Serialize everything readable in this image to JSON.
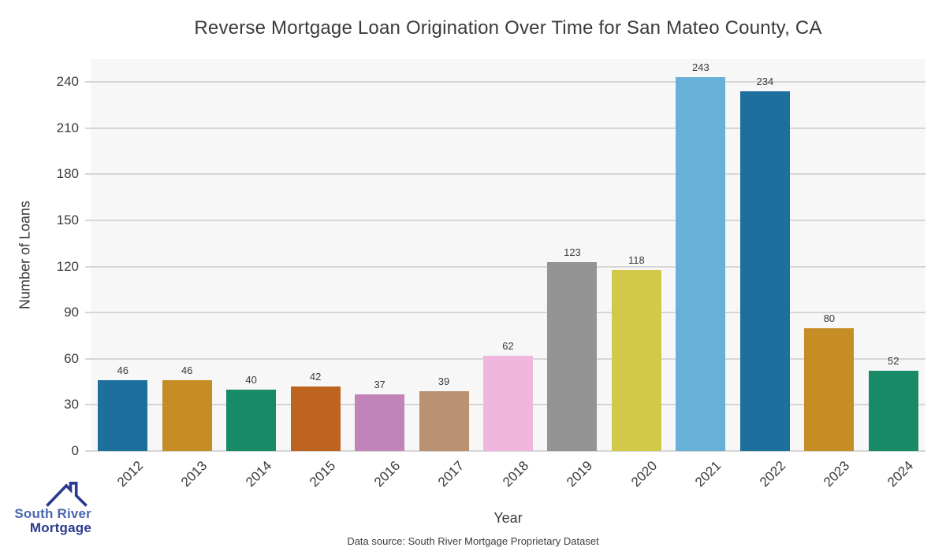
{
  "page": {
    "footer_note": "Data source: South River Mortgage Proprietary Dataset"
  },
  "logo": {
    "line1": "South River",
    "line2": "Mortgage",
    "line1_color": "#4a66b2",
    "line2_color": "#2b3a8f",
    "icon": "house-roof-icon",
    "icon_color": "#2b3a8f"
  },
  "chart_data": {
    "type": "bar",
    "title": "Reverse Mortgage Loan Origination Over Time for San Mateo County, CA",
    "xlabel": "Year",
    "ylabel": "Number of Loans",
    "categories": [
      "2012",
      "2013",
      "2014",
      "2015",
      "2016",
      "2017",
      "2018",
      "2019",
      "2020",
      "2021",
      "2022",
      "2023",
      "2024"
    ],
    "values": [
      46,
      46,
      40,
      42,
      37,
      39,
      62,
      123,
      118,
      243,
      234,
      80,
      52
    ],
    "bar_colors": [
      "#1d6f9e",
      "#c68d24",
      "#198a67",
      "#bd6420",
      "#c284b8",
      "#bb9271",
      "#f0b6de",
      "#949494",
      "#d2c94a",
      "#69b0d8",
      "#1d6f9e",
      "#c68d24",
      "#198a67"
    ],
    "yticks": [
      0,
      30,
      60,
      90,
      120,
      150,
      180,
      210,
      240
    ],
    "ylim": [
      0,
      255
    ],
    "grid": "horizontal",
    "legend": "none",
    "value_labels": true,
    "plot_bg": "#f7f7f7",
    "grid_color": "#d6d6d6",
    "text_color": "#3a3a3a"
  }
}
